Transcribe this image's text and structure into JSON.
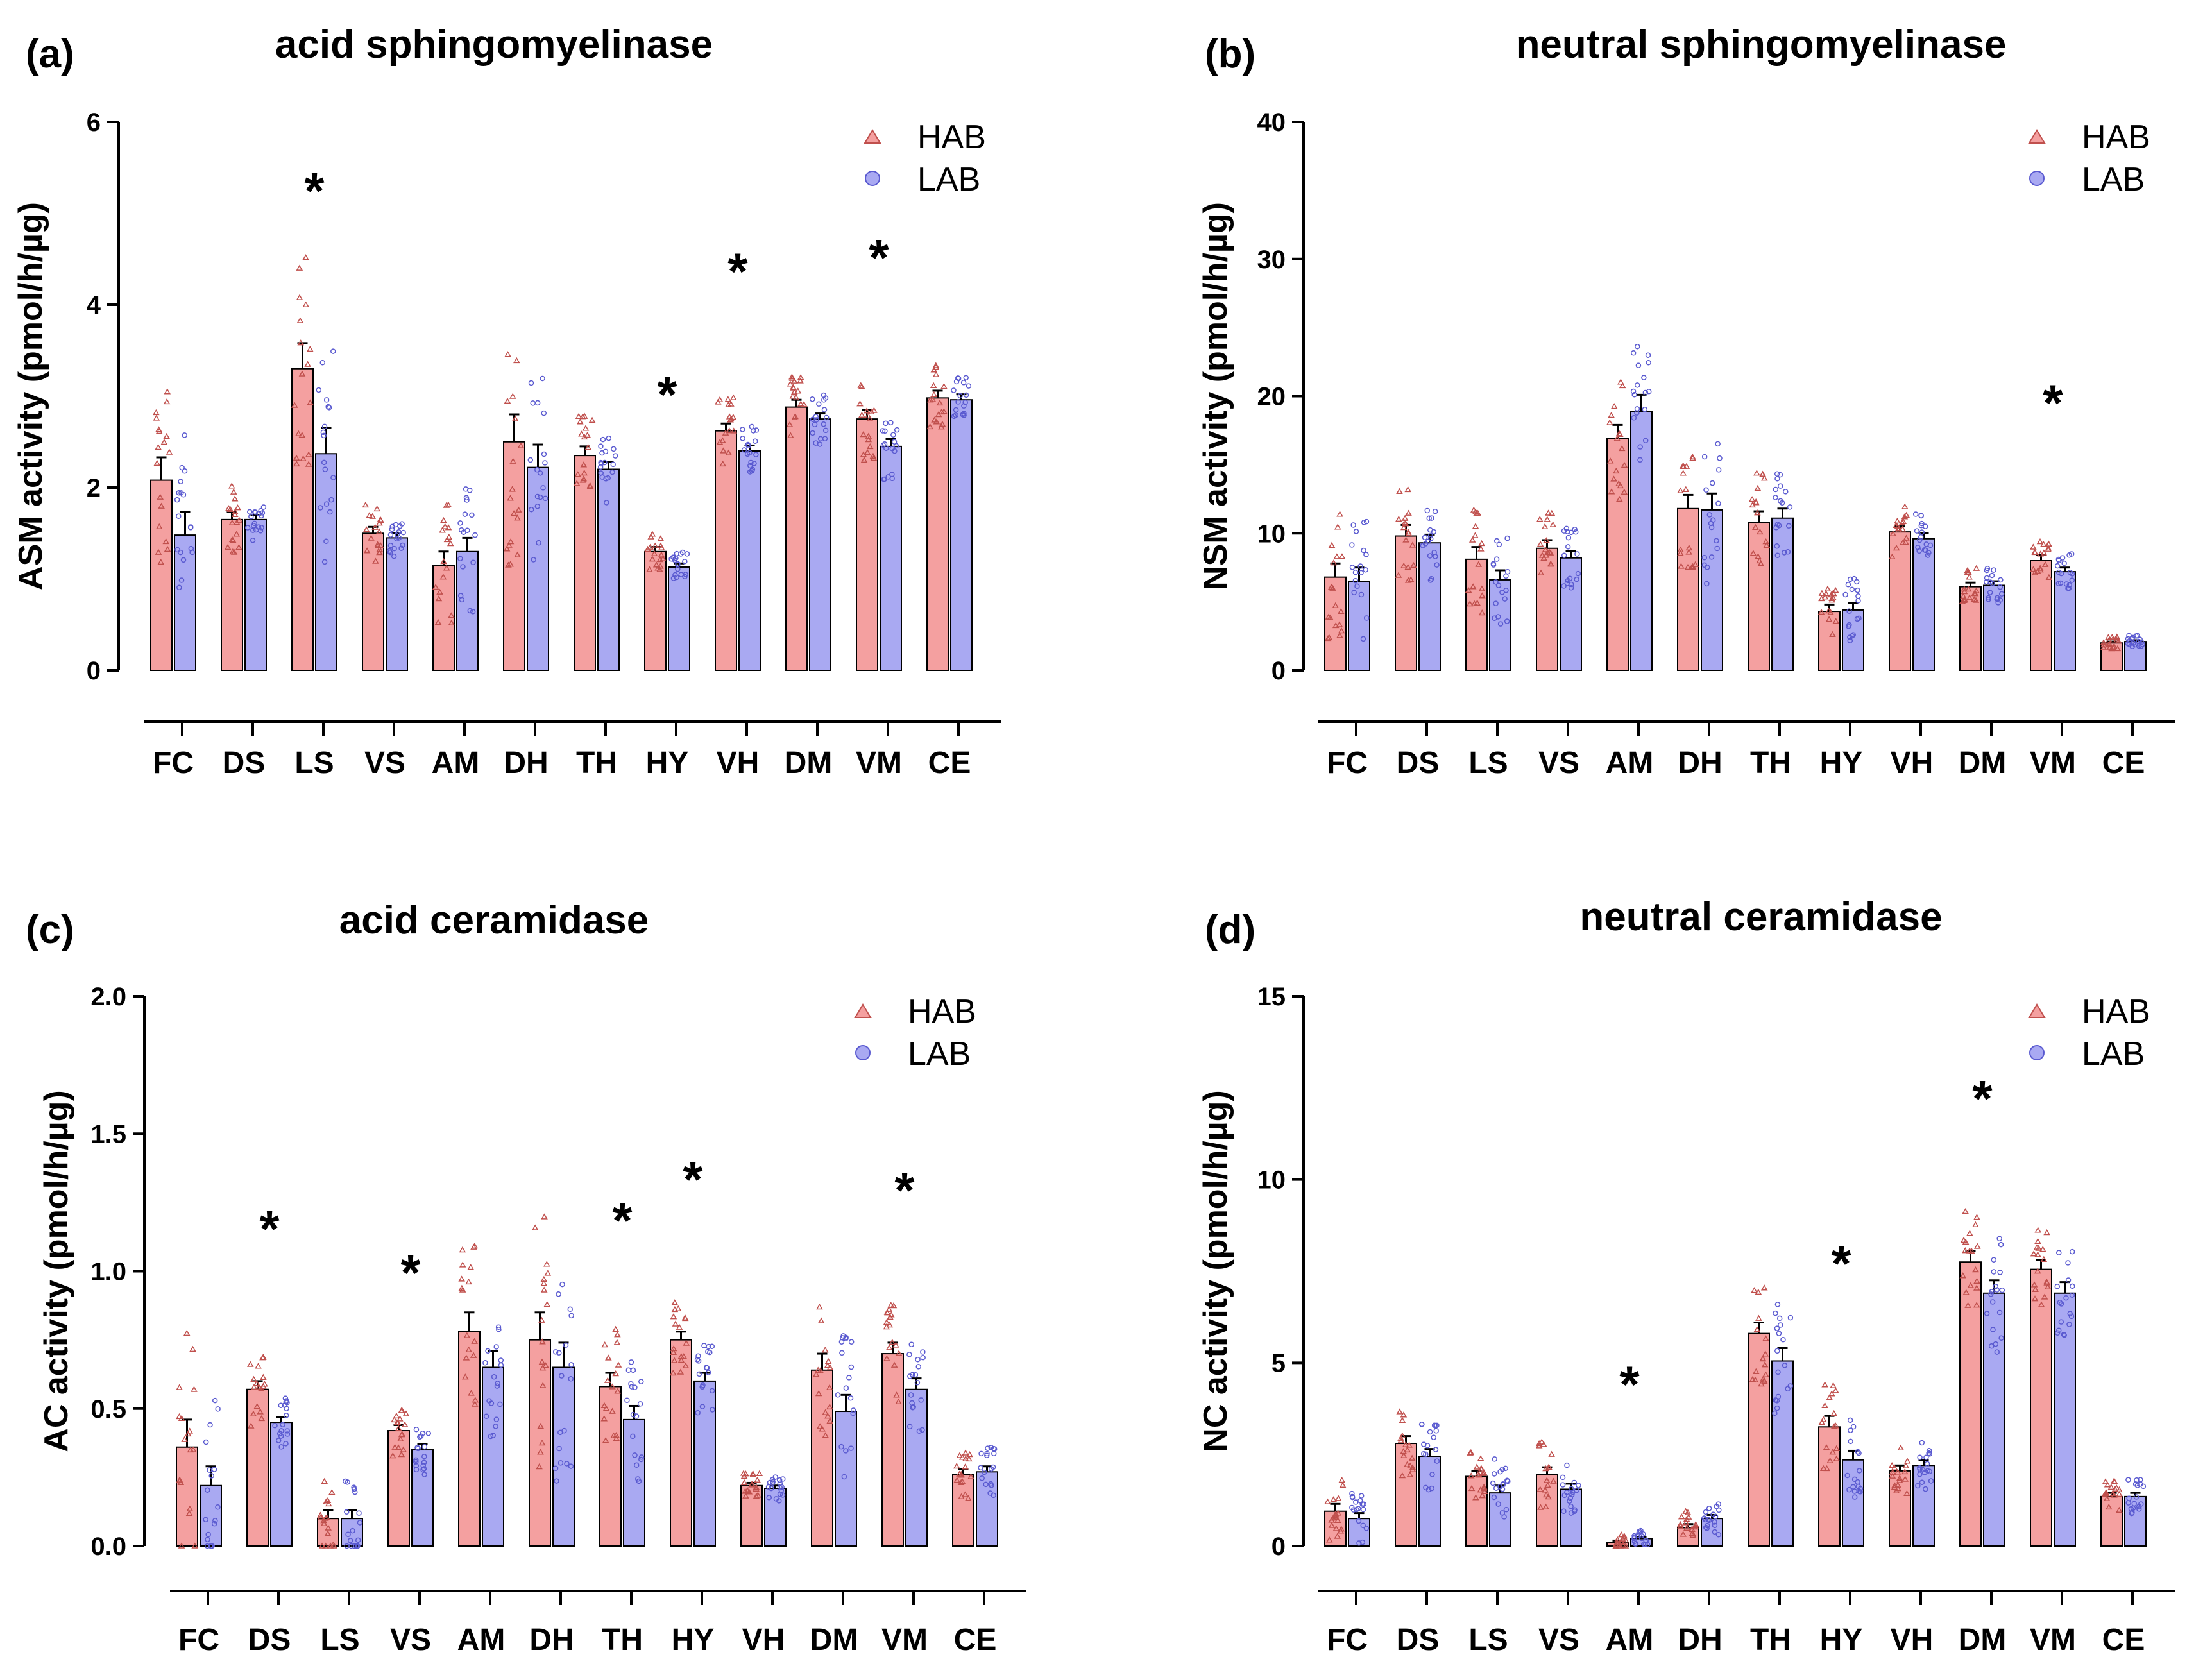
{
  "colors": {
    "hab": "#F4A0A0",
    "hab_dot": "#C0504D",
    "lab": "#A9A9F2",
    "lab_dot": "#5A5AD0",
    "axis": "#000000"
  },
  "legend": {
    "hab": "HAB",
    "lab": "LAB"
  },
  "chart_data": [
    {
      "type": "bar",
      "panel": "(a)",
      "title": "acid sphingomyelinase",
      "ylabel": "ASM activity  (pmol/h/µg)",
      "xlabel": "",
      "ylim": [
        0,
        6
      ],
      "yticks": [
        "0",
        "2",
        "4",
        "6"
      ],
      "ytick_values": [
        0,
        2,
        4,
        6
      ],
      "categories": [
        "FC",
        "DS",
        "LS",
        "VS",
        "AM",
        "DH",
        "TH",
        "HY",
        "VH",
        "DM",
        "VM",
        "CE"
      ],
      "series": [
        {
          "name": "HAB",
          "values": [
            2.08,
            1.65,
            3.3,
            1.5,
            1.15,
            2.5,
            2.35,
            1.3,
            2.62,
            2.88,
            2.75,
            2.98
          ],
          "errors": [
            0.25,
            0.08,
            0.28,
            0.07,
            0.15,
            0.3,
            0.1,
            0.05,
            0.08,
            0.08,
            0.1,
            0.08
          ]
        },
        {
          "name": "LAB",
          "values": [
            1.48,
            1.65,
            2.37,
            1.45,
            1.3,
            2.22,
            2.2,
            1.13,
            2.4,
            2.75,
            2.45,
            2.96
          ],
          "errors": [
            0.25,
            0.05,
            0.28,
            0.05,
            0.15,
            0.25,
            0.08,
            0.04,
            0.06,
            0.06,
            0.08,
            0.06
          ]
        }
      ],
      "significant": [
        "LS",
        "HY",
        "VH",
        "VM"
      ]
    },
    {
      "type": "bar",
      "panel": "(b)",
      "title": "neutral sphingomyelinase",
      "ylabel": "NSM activity  (pmol/h/µg)",
      "xlabel": "",
      "ylim": [
        0,
        40
      ],
      "yticks": [
        "0",
        "10",
        "20",
        "30",
        "40"
      ],
      "ytick_values": [
        0,
        10,
        20,
        30,
        40
      ],
      "categories": [
        "FC",
        "DS",
        "LS",
        "VS",
        "AM",
        "DH",
        "TH",
        "HY",
        "VH",
        "DM",
        "VM",
        "CE"
      ],
      "series": [
        {
          "name": "HAB",
          "values": [
            6.8,
            9.8,
            8.1,
            8.9,
            16.9,
            11.8,
            10.8,
            4.3,
            10.1,
            6.1,
            8.0,
            2.0
          ],
          "errors": [
            1.0,
            0.8,
            0.9,
            0.6,
            1.0,
            1.0,
            0.8,
            0.5,
            0.4,
            0.3,
            0.4,
            0.1
          ]
        },
        {
          "name": "LAB",
          "values": [
            6.5,
            9.3,
            6.6,
            8.2,
            18.9,
            11.7,
            11.1,
            4.4,
            9.6,
            6.2,
            7.2,
            2.1
          ],
          "errors": [
            1.0,
            0.6,
            0.7,
            0.5,
            1.2,
            1.2,
            0.7,
            0.5,
            0.4,
            0.3,
            0.3,
            0.1
          ]
        }
      ],
      "significant": [
        "VM"
      ]
    },
    {
      "type": "bar",
      "panel": "(c)",
      "title": "acid ceramidase",
      "ylabel": "AC activity  (pmol/h/µg)",
      "xlabel": "",
      "ylim": [
        0,
        2
      ],
      "yticks": [
        "0.0",
        "0.5",
        "1.0",
        "1.5",
        "2.0"
      ],
      "ytick_values": [
        0,
        0.5,
        1.0,
        1.5,
        2.0
      ],
      "categories": [
        "FC",
        "DS",
        "LS",
        "VS",
        "AM",
        "DH",
        "TH",
        "HY",
        "VH",
        "DM",
        "VM",
        "CE"
      ],
      "series": [
        {
          "name": "HAB",
          "values": [
            0.36,
            0.57,
            0.1,
            0.42,
            0.78,
            0.75,
            0.58,
            0.75,
            0.22,
            0.64,
            0.7,
            0.26
          ],
          "errors": [
            0.1,
            0.03,
            0.03,
            0.02,
            0.07,
            0.1,
            0.05,
            0.03,
            0.01,
            0.06,
            0.04,
            0.02
          ]
        },
        {
          "name": "LAB",
          "values": [
            0.22,
            0.45,
            0.1,
            0.35,
            0.65,
            0.65,
            0.46,
            0.6,
            0.21,
            0.49,
            0.57,
            0.27
          ],
          "errors": [
            0.07,
            0.02,
            0.03,
            0.02,
            0.06,
            0.09,
            0.05,
            0.03,
            0.01,
            0.06,
            0.04,
            0.02
          ]
        }
      ],
      "significant": [
        "DS",
        "VS",
        "TH",
        "HY",
        "VM"
      ]
    },
    {
      "type": "bar",
      "panel": "(d)",
      "title": "neutral ceramidase",
      "ylabel": "NC activity  (pmol/h/µg)",
      "xlabel": "",
      "ylim": [
        0,
        15
      ],
      "yticks": [
        "0",
        "5",
        "10",
        "15"
      ],
      "ytick_values": [
        0,
        5,
        10,
        15
      ],
      "categories": [
        "FC",
        "DS",
        "LS",
        "VS",
        "AM",
        "DH",
        "TH",
        "HY",
        "VH",
        "DM",
        "VM",
        "CE"
      ],
      "series": [
        {
          "name": "HAB",
          "values": [
            0.95,
            2.8,
            1.9,
            1.95,
            0.1,
            0.5,
            5.8,
            3.25,
            2.05,
            7.75,
            7.55,
            1.35
          ],
          "errors": [
            0.2,
            0.2,
            0.15,
            0.2,
            0.05,
            0.1,
            0.3,
            0.3,
            0.15,
            0.3,
            0.25,
            0.1
          ]
        },
        {
          "name": "LAB",
          "values": [
            0.75,
            2.45,
            1.45,
            1.55,
            0.2,
            0.75,
            5.05,
            2.35,
            2.2,
            6.9,
            6.9,
            1.35
          ],
          "errors": [
            0.15,
            0.2,
            0.2,
            0.15,
            0.05,
            0.1,
            0.35,
            0.25,
            0.15,
            0.35,
            0.3,
            0.1
          ]
        }
      ],
      "significant": [
        "AM",
        "HY",
        "DM"
      ]
    }
  ]
}
